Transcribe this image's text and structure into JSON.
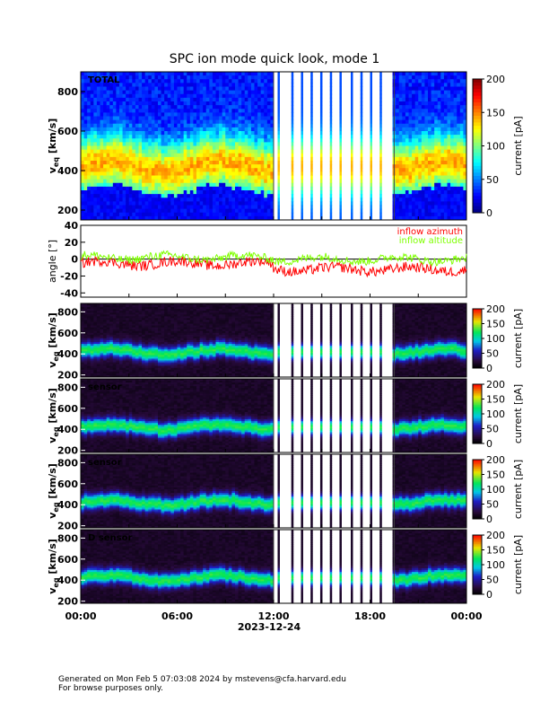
{
  "title": "SPC ion mode quick look, mode 1",
  "footer": {
    "line1": "Generated on Mon Feb  5 07:03:08 2024 by mstevens@cfa.harvard.edu",
    "line2": "For browse purposes only."
  },
  "x_axis": {
    "tick_labels": [
      "00:00",
      "06:00",
      "12:00",
      "18:00",
      "00:00"
    ],
    "date_label": "2023-12-24",
    "range_hours": [
      0,
      24
    ]
  },
  "chart_data": [
    {
      "type": "heatmap",
      "panel": "total",
      "label": "TOTAL",
      "ylabel": "v_eq [km/s]",
      "ylabel_main": "v",
      "ylabel_sub": "eq",
      "ylabel_unit": "[km/s]",
      "ylim": [
        150,
        900
      ],
      "yticks": [
        200,
        400,
        600,
        800
      ],
      "colorbar": {
        "label": "current [pA]",
        "range": [
          0,
          200
        ],
        "ticks": [
          0,
          50,
          100,
          150,
          200
        ]
      },
      "colormap": "jet",
      "beam_core_speed_kms": 420,
      "data_gap_hours": [
        12.0,
        19.5
      ]
    },
    {
      "type": "line",
      "panel": "angle",
      "ylabel": "angle [°]",
      "ylim": [
        -45,
        40
      ],
      "yticks": [
        -40,
        -20,
        0,
        20,
        40
      ],
      "series": [
        {
          "name": "inflow azimuth",
          "color": "#ff0000",
          "mean_first_half": -5,
          "mean_second_half": -12
        },
        {
          "name": "inflow altitude",
          "color": "#7fff00",
          "mean_first_half": 2,
          "mean_second_half": 0
        }
      ]
    },
    {
      "type": "heatmap",
      "panel": "sensor-a",
      "label": "",
      "ylabel_main": "v",
      "ylabel_sub": "eq",
      "ylabel_unit": "[km/s]",
      "ylim": [
        180,
        880
      ],
      "yticks": [
        200,
        400,
        600,
        800
      ],
      "colorbar": {
        "label": "current [pA]",
        "range": [
          0,
          200
        ],
        "ticks": [
          0,
          50,
          100,
          150,
          200
        ]
      },
      "colormap": "black-blue-green-red",
      "beam_core_speed_kms": 420
    },
    {
      "type": "heatmap",
      "panel": "sensor-b",
      "label": "sensor",
      "ylabel_main": "v",
      "ylabel_sub": "eq",
      "ylabel_unit": "[km/s]",
      "ylim": [
        180,
        880
      ],
      "yticks": [
        200,
        400,
        600,
        800
      ],
      "colorbar": {
        "label": "current [pA]",
        "range": [
          0,
          200
        ],
        "ticks": [
          0,
          50,
          100,
          150,
          200
        ]
      },
      "colormap": "black-blue-green-red",
      "beam_core_speed_kms": 420
    },
    {
      "type": "heatmap",
      "panel": "sensor-c",
      "label": "sensor",
      "ylabel_main": "v",
      "ylabel_sub": "eq",
      "ylabel_unit": "[km/s]",
      "ylim": [
        180,
        880
      ],
      "yticks": [
        200,
        400,
        600,
        800
      ],
      "colorbar": {
        "label": "current [pA]",
        "range": [
          0,
          200
        ],
        "ticks": [
          0,
          50,
          100,
          150,
          200
        ]
      },
      "colormap": "black-blue-green-red",
      "beam_core_speed_kms": 420
    },
    {
      "type": "heatmap",
      "panel": "sensor-d",
      "label": "D sensor",
      "ylabel_main": "v",
      "ylabel_sub": "eq",
      "ylabel_unit": "[km/s]",
      "ylim": [
        180,
        880
      ],
      "yticks": [
        200,
        400,
        600,
        800
      ],
      "colorbar": {
        "label": "current [pA]",
        "range": [
          0,
          200
        ],
        "ticks": [
          0,
          50,
          100,
          150,
          200
        ]
      },
      "colormap": "black-blue-green-red",
      "beam_core_speed_kms": 420
    }
  ]
}
